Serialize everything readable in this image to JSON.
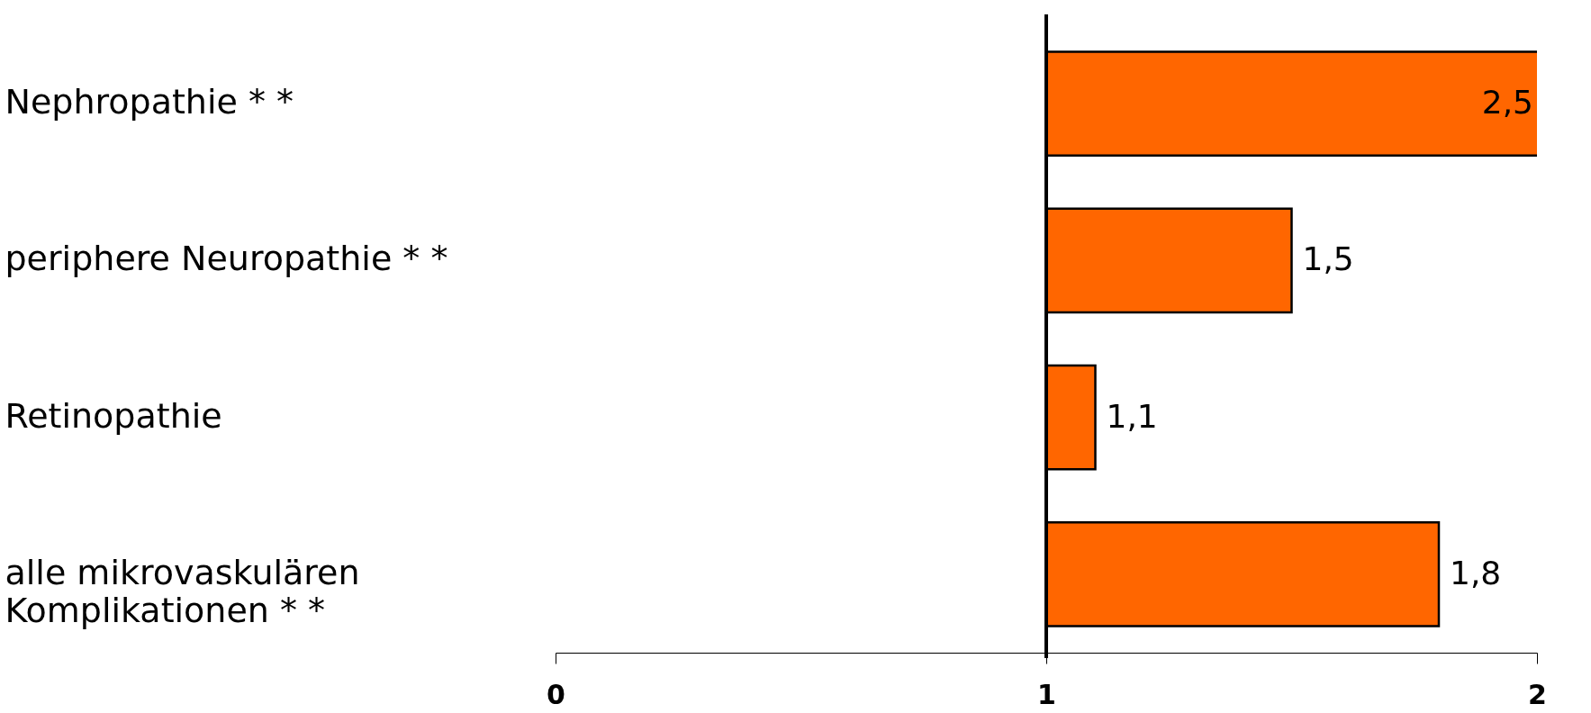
{
  "chart_data": {
    "type": "bar",
    "orientation": "horizontal",
    "categories": [
      "Nephropathie * *",
      "periphere Neuropathie * *",
      "Retinopathie",
      "alle mikrovaskulären Komplikationen * *"
    ],
    "base": [
      1,
      1,
      1,
      1
    ],
    "values": [
      1.5,
      0.5,
      0.1,
      0.8
    ],
    "value_labels": [
      "2,5",
      "1,5",
      "1,1",
      "1,8"
    ],
    "color": "#ff6600",
    "xlim": [
      0,
      2
    ],
    "xticks": [
      0,
      1,
      2
    ],
    "ref_lines": [
      {
        "axis": "x",
        "value": 1,
        "color": "#000000"
      }
    ],
    "grid": false
  }
}
